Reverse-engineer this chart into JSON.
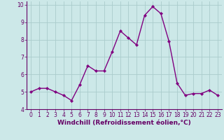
{
  "x": [
    0,
    1,
    2,
    3,
    4,
    5,
    6,
    7,
    8,
    9,
    10,
    11,
    12,
    13,
    14,
    15,
    16,
    17,
    18,
    19,
    20,
    21,
    22,
    23
  ],
  "y": [
    5.0,
    5.2,
    5.2,
    5.0,
    4.8,
    4.5,
    5.4,
    6.5,
    6.2,
    6.2,
    7.3,
    8.5,
    8.1,
    7.7,
    9.4,
    9.9,
    9.5,
    7.9,
    5.5,
    4.8,
    4.9,
    4.9,
    5.1,
    4.8
  ],
  "line_color": "#800080",
  "marker": "D",
  "marker_size": 2.2,
  "line_width": 1.0,
  "bg_color": "#cce8e8",
  "grid_color": "#aacccc",
  "xlabel": "Windchill (Refroidissement éolien,°C)",
  "xlim": [
    -0.5,
    23.5
  ],
  "ylim": [
    4.0,
    10.2
  ],
  "yticks": [
    4,
    5,
    6,
    7,
    8,
    9,
    10
  ],
  "xticks": [
    0,
    1,
    2,
    3,
    4,
    5,
    6,
    7,
    8,
    9,
    10,
    11,
    12,
    13,
    14,
    15,
    16,
    17,
    18,
    19,
    20,
    21,
    22,
    23
  ],
  "tick_label_size": 5.5,
  "xlabel_size": 6.5,
  "axis_label_color": "#660066",
  "spine_color": "#660066"
}
